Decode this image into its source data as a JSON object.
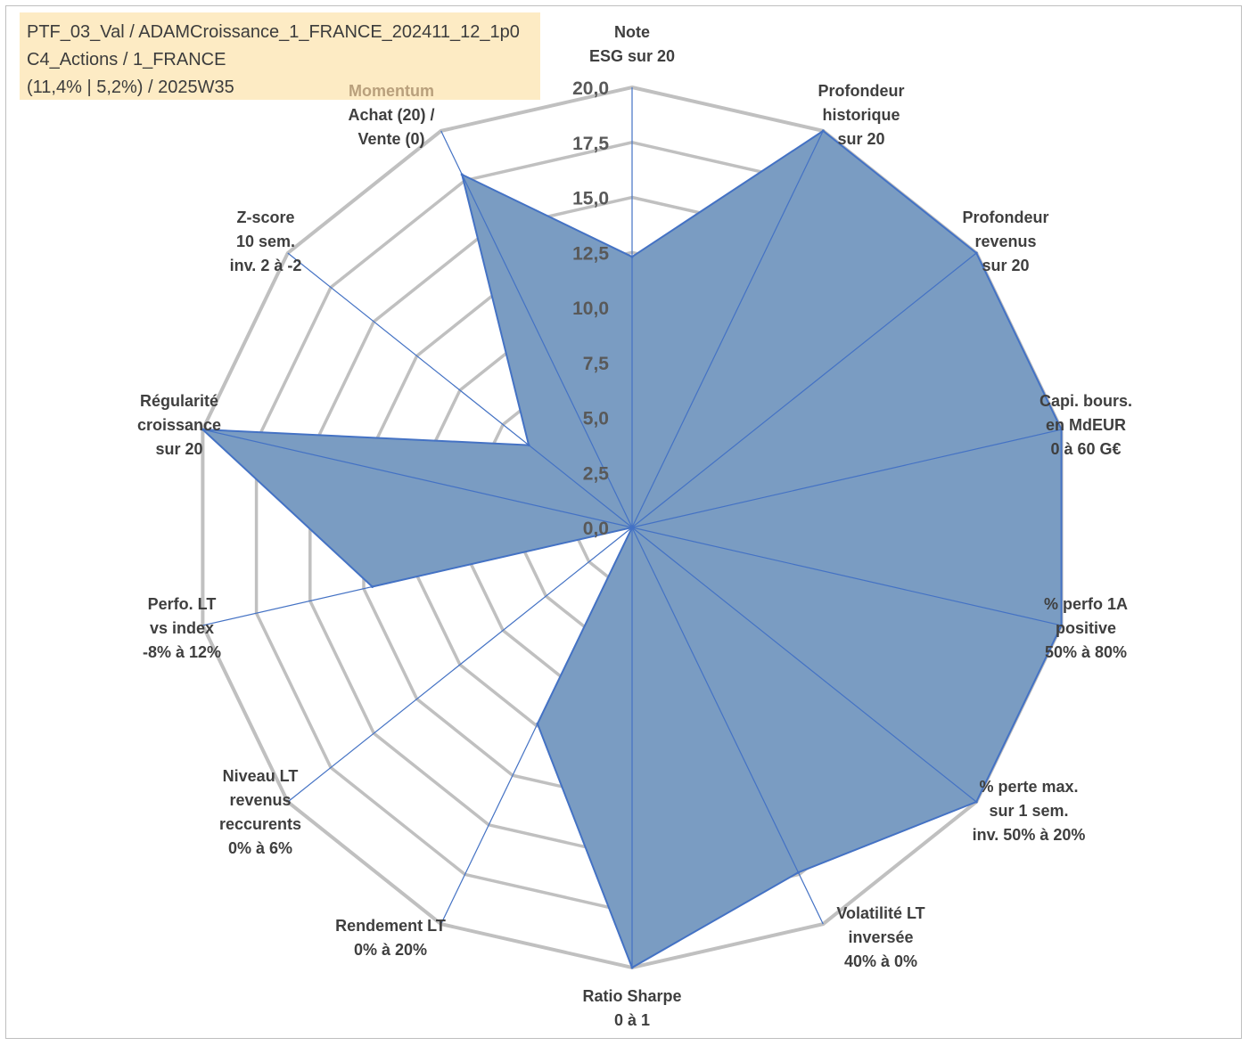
{
  "header": {
    "line1": "PTF_03_Val / ADAMCroissance_1_FRANCE_202411_12_1p0",
    "line2": "C4_Actions / 1_FRANCE",
    "line3": "(11,4% | 5,2%) / 2025W35"
  },
  "chart_data": {
    "type": "radar",
    "rmin": 0,
    "rmax": 20,
    "ticks": [
      "0,0",
      "2,5",
      "5,0",
      "7,5",
      "10,0",
      "12,5",
      "15,0",
      "17,5",
      "20,0"
    ],
    "axes": [
      {
        "label": [
          "Note",
          "ESG sur 20"
        ],
        "value": 12.3
      },
      {
        "label": [
          "Profondeur",
          "historique",
          "sur 20"
        ],
        "value": 20
      },
      {
        "label": [
          "Profondeur",
          "revenus",
          "sur 20"
        ],
        "value": 20
      },
      {
        "label": [
          "Capi. bours.",
          "en MdEUR",
          "0 à 60 G€"
        ],
        "value": 20
      },
      {
        "label": [
          "% perfo 1A",
          "positive",
          "50% à 80%"
        ],
        "value": 20
      },
      {
        "label": [
          "% perte max.",
          "sur 1 sem.",
          "inv. 50% à 20%"
        ],
        "value": 20
      },
      {
        "label": [
          "Volatilité LT",
          "inversée",
          "40% à 0%"
        ],
        "value": 17.4
      },
      {
        "label": [
          "Ratio Sharpe",
          "0 à 1"
        ],
        "value": 20
      },
      {
        "label": [
          "Rendement LT",
          "0% à 20%"
        ],
        "value": 9.9
      },
      {
        "label": [
          "Niveau LT",
          "revenus",
          "reccurents",
          "0% à 6%"
        ],
        "value": 0
      },
      {
        "label": [
          "Perfo. LT",
          "vs index",
          "-8% à 12%"
        ],
        "value": 12.1
      },
      {
        "label": [
          "Régularité",
          "croissance",
          "sur 20"
        ],
        "value": 20
      },
      {
        "label": [
          "Z-score",
          "10 sem.",
          "inv. 2 à -2"
        ],
        "value": 6.0
      },
      {
        "label": [
          "Achat (20) /",
          "Vente (0)"
        ],
        "label_extra": "Momentum",
        "value": 17.8
      }
    ],
    "colors": {
      "fill": "#7a9cc2",
      "stroke": "#4472c4",
      "spoke": "#4472c4",
      "grid": "#c0c0c0"
    }
  }
}
